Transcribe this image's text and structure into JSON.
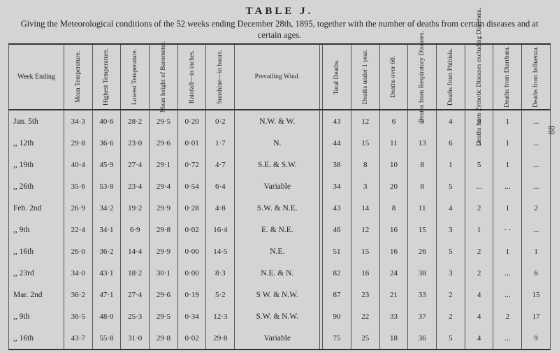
{
  "title": "TABLE J.",
  "subtitle": "Giving the Meteorological conditions of the 52 weeks ending December 28th, 1895, together with the number of deaths from certain diseases and at certain ages.",
  "page_side": "88",
  "headers": [
    "Week Ending",
    "Mean Temperature.",
    "Highest Temperature.",
    "Lowest Temperature.",
    "Mean height of Barometer.",
    "Rainfall—in inches.",
    "Sunshine—in hours.",
    "Prevailing Wind.",
    "Total Deaths.",
    "Deaths under 1 year.",
    "Deaths over 60.",
    "Deaths from Respiratory Diseases.",
    "Deaths from Phthisis.",
    "Deaths from Zymotic Diseases excluding Diarrhœa.",
    "Deaths from Diarrhœa.",
    "Deaths from Influenza."
  ],
  "rows": [
    {
      "week": "Jan.  5th",
      "c": [
        "34·3",
        "40·6",
        "28·2",
        "29·5",
        "0·20",
        "0·2",
        "N.W. & W.",
        "43",
        "12",
        "6",
        "9",
        "4",
        "9",
        "1",
        "..."
      ]
    },
    {
      "week": ",,   12th",
      "c": [
        "29·8",
        "36·6",
        "23·0",
        "29·6",
        "0·01",
        "1·7",
        "N.",
        "44",
        "15",
        "11",
        "13",
        "6",
        "3",
        "1",
        "..."
      ]
    },
    {
      "week": ",,   19th",
      "c": [
        "40·4",
        "45·9",
        "27·4",
        "29·1",
        "0·72",
        "4·7",
        "S.E. & S.W.",
        "38",
        "8",
        "10",
        "8",
        "1",
        "5",
        "1",
        "..."
      ]
    },
    {
      "week": ",,   26th",
      "c": [
        "35·6",
        "53·8",
        "23·4",
        "29·4",
        "0·54",
        "6·4",
        "Variable",
        "34",
        "3",
        "20",
        "8",
        "5",
        "...",
        "...",
        "..."
      ]
    },
    {
      "week": "Feb.  2nd",
      "c": [
        "26·9",
        "34·2",
        "19·2",
        "29·9",
        "0·28",
        "4·8",
        "S.W. & N.E.",
        "43",
        "14",
        "8",
        "11",
        "4",
        "2",
        "1",
        "2"
      ]
    },
    {
      "week": ",,    9th",
      "c": [
        "22·4",
        "34·1",
        "6·9",
        "29·8",
        "0·02",
        "16·4",
        "E. & N.E.",
        "46",
        "12",
        "16",
        "15",
        "3",
        "1",
        "· ·",
        "..."
      ]
    },
    {
      "week": ",,   16th",
      "c": [
        "26·0",
        "36·2",
        "14·4",
        "29·9",
        "0·00",
        "14·5",
        "N.E.",
        "51",
        "15",
        "16",
        "26",
        "5",
        "2",
        "1",
        "1"
      ]
    },
    {
      "week": ",,   23rd",
      "c": [
        "34·0",
        "43·1",
        "18·2",
        "30·1",
        "0·00",
        "8·3",
        "N.E. & N.",
        "82",
        "16",
        "24",
        "38",
        "3",
        "2",
        "...",
        "6"
      ]
    },
    {
      "week": "Mar.  2nd",
      "c": [
        "36·2",
        "47·1",
        "27·4",
        "29·6",
        "0·19",
        "5·2",
        "S W. & N.W.",
        "87",
        "23",
        "21",
        "33",
        "2",
        "4",
        "...",
        "15"
      ]
    },
    {
      "week": ",,    9th",
      "c": [
        "36·5",
        "48·0",
        "25·3",
        "29·5",
        "0·34",
        "12·3",
        "S.W. & N.W.",
        "90",
        "22",
        "33",
        "37",
        "2",
        "4",
        "2",
        "17"
      ]
    },
    {
      "week": ",,   16th",
      "c": [
        "43·7",
        "55·8",
        "31·0",
        "29·8",
        "0·02",
        "29·8",
        "Variable",
        "75",
        "25",
        "18",
        "36",
        "5",
        "4",
        "...",
        "9"
      ]
    }
  ]
}
